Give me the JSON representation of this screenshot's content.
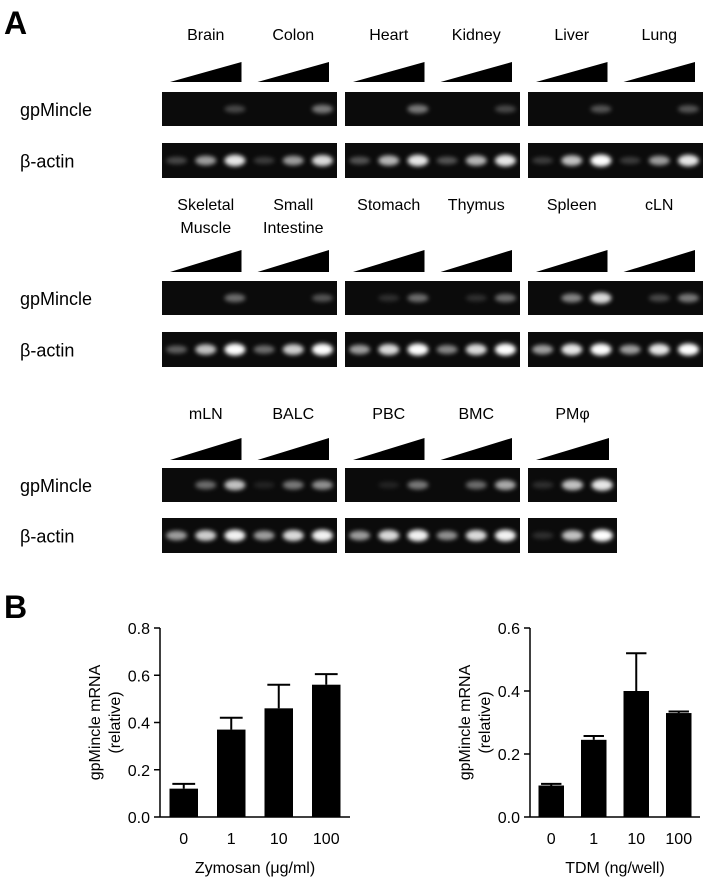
{
  "panel_a": {
    "label": "A",
    "row_labels": [
      "gpMincle",
      "β-actin"
    ],
    "rows": [
      {
        "tissues": [
          [
            "Brain"
          ],
          [
            "Colon"
          ],
          [
            "Heart"
          ],
          [
            "Kidney"
          ],
          [
            "Liver"
          ],
          [
            "Lung"
          ]
        ]
      },
      {
        "tissues": [
          [
            "Skeletal",
            "Muscle"
          ],
          [
            "Small",
            "Intestine"
          ],
          [
            "Stomach"
          ],
          [
            "Thymus"
          ],
          [
            "Spleen"
          ],
          [
            "cLN"
          ]
        ]
      },
      {
        "tissues": [
          [
            "mLN"
          ],
          [
            "BALC"
          ],
          [
            "PBC"
          ],
          [
            "BMC"
          ],
          [
            "PMφ"
          ]
        ]
      }
    ]
  },
  "panel_b": {
    "label": "B"
  },
  "chart_data": [
    {
      "type": "bar",
      "y_label": [
        "gpMincle mRNA",
        "(relative)"
      ],
      "x_label": "Zymosan (μg/ml)",
      "categories": [
        "0",
        "1",
        "10",
        "100"
      ],
      "values": [
        0.12,
        0.37,
        0.46,
        0.56
      ],
      "errors": [
        0.02,
        0.05,
        0.1,
        0.045
      ],
      "color": "#000000",
      "ylim": [
        0,
        0.8
      ],
      "yticks": [
        {
          "value": 0,
          "label": "0.0"
        },
        0.2,
        0.4,
        0.6,
        0.8
      ]
    },
    {
      "type": "bar",
      "y_label": [
        "gpMincle  mRNA",
        "(relative)"
      ],
      "x_label": "TDM (ng/well)",
      "categories": [
        "0",
        "1",
        "10",
        "100"
      ],
      "values": [
        0.1,
        0.245,
        0.4,
        0.33
      ],
      "errors": [
        0.005,
        0.012,
        0.12,
        0.005
      ],
      "color": "#000000",
      "ylim": [
        0,
        0.6
      ],
      "yticks": [
        {
          "value": 0,
          "label": "0.0"
        },
        0.2,
        0.4,
        0.6
      ]
    }
  ]
}
